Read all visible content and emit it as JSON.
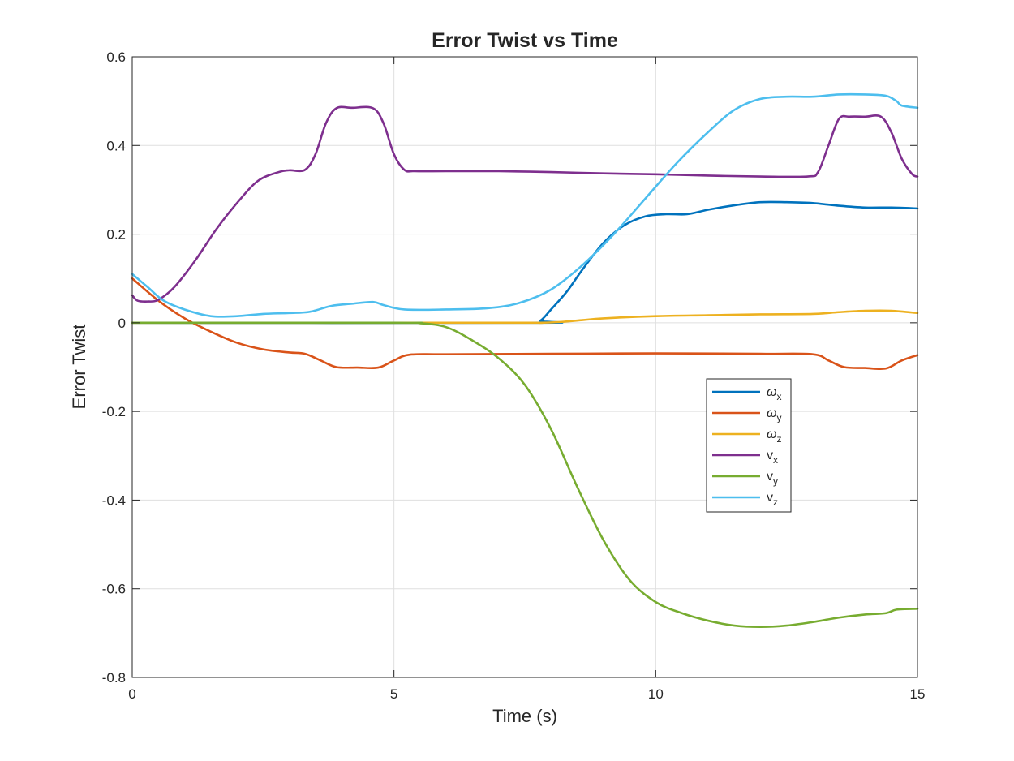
{
  "chart_data": {
    "type": "line",
    "title": "Error Twist vs Time",
    "xlabel": "Time (s)",
    "ylabel": "Error Twist",
    "xlim": [
      0,
      15
    ],
    "ylim": [
      -0.8,
      0.6
    ],
    "xticks": [
      0,
      5,
      10,
      15
    ],
    "xtick_labels": [
      "0",
      "5",
      "10",
      "15"
    ],
    "yticks": [
      -0.8,
      -0.6,
      -0.4,
      -0.2,
      0,
      0.2,
      0.4,
      0.6
    ],
    "ytick_labels": [
      "-0.8",
      "-0.6",
      "-0.4",
      "-0.2",
      "0",
      "0.2",
      "0.4",
      "0.6"
    ],
    "grid": true,
    "legend_position": "center-right",
    "series": [
      {
        "name": "ω",
        "subscript": "x",
        "color": "#0072BD",
        "x": [
          0,
          7.6,
          7.8,
          8.0,
          8.3,
          8.6,
          9.0,
          9.4,
          9.8,
          10.2,
          10.6,
          11.0,
          11.5,
          12.0,
          12.5,
          13.0,
          13.5,
          14.0,
          14.5,
          15.0
        ],
        "y": [
          0,
          0,
          0.005,
          0.03,
          0.07,
          0.12,
          0.18,
          0.22,
          0.24,
          0.245,
          0.245,
          0.255,
          0.265,
          0.272,
          0.272,
          0.27,
          0.264,
          0.26,
          0.26,
          0.258
        ]
      },
      {
        "name": "ω",
        "subscript": "y",
        "color": "#D95319",
        "x": [
          0,
          0.5,
          1.0,
          1.5,
          2.0,
          2.5,
          3.0,
          3.3,
          3.6,
          3.9,
          4.3,
          4.7,
          5.0,
          5.3,
          6.0,
          8.0,
          10.0,
          12.0,
          13.0,
          13.3,
          13.6,
          14.0,
          14.4,
          14.7,
          15.0
        ],
        "y": [
          0.1,
          0.05,
          0.01,
          -0.02,
          -0.045,
          -0.06,
          -0.067,
          -0.07,
          -0.085,
          -0.1,
          -0.101,
          -0.101,
          -0.085,
          -0.072,
          -0.071,
          -0.07,
          -0.069,
          -0.07,
          -0.071,
          -0.085,
          -0.1,
          -0.102,
          -0.103,
          -0.085,
          -0.073
        ]
      },
      {
        "name": "ω",
        "subscript": "z",
        "color": "#EDB120",
        "x": [
          0,
          5.0,
          7.6,
          7.8,
          8.2,
          8.6,
          9.0,
          10.0,
          11.0,
          12.0,
          13.0,
          13.5,
          14.0,
          14.5,
          15.0
        ],
        "y": [
          0,
          0,
          0,
          0,
          0.002,
          0.006,
          0.01,
          0.015,
          0.017,
          0.019,
          0.02,
          0.024,
          0.027,
          0.027,
          0.022
        ]
      },
      {
        "name": "v",
        "subscript": "x",
        "color": "#7E2F8E",
        "x": [
          0,
          0.1,
          0.3,
          0.5,
          0.8,
          1.2,
          1.6,
          2.0,
          2.4,
          2.8,
          3.0,
          3.3,
          3.5,
          3.7,
          3.9,
          4.2,
          4.6,
          4.8,
          5.0,
          5.2,
          5.4,
          6.0,
          7.0,
          8.0,
          9.0,
          10.0,
          11.0,
          12.0,
          12.9,
          13.1,
          13.3,
          13.5,
          13.7,
          14.0,
          14.3,
          14.5,
          14.7,
          14.9,
          15.0
        ],
        "y": [
          0.062,
          0.05,
          0.048,
          0.052,
          0.08,
          0.14,
          0.21,
          0.27,
          0.32,
          0.34,
          0.344,
          0.345,
          0.38,
          0.45,
          0.484,
          0.485,
          0.484,
          0.45,
          0.38,
          0.345,
          0.342,
          0.342,
          0.342,
          0.34,
          0.337,
          0.335,
          0.332,
          0.33,
          0.33,
          0.34,
          0.4,
          0.46,
          0.465,
          0.465,
          0.465,
          0.43,
          0.37,
          0.335,
          0.33
        ]
      },
      {
        "name": "v",
        "subscript": "y",
        "color": "#77AC30",
        "x": [
          0,
          5.0,
          5.5,
          6.0,
          6.5,
          7.0,
          7.5,
          8.0,
          8.5,
          9.0,
          9.5,
          10.0,
          10.5,
          11.0,
          11.5,
          12.0,
          12.5,
          13.0,
          13.5,
          14.0,
          14.4,
          14.6,
          15.0
        ],
        "y": [
          0,
          0,
          -0.001,
          -0.01,
          -0.04,
          -0.08,
          -0.14,
          -0.24,
          -0.37,
          -0.49,
          -0.58,
          -0.63,
          -0.655,
          -0.672,
          -0.683,
          -0.686,
          -0.683,
          -0.675,
          -0.665,
          -0.658,
          -0.655,
          -0.647,
          -0.645
        ]
      },
      {
        "name": "v",
        "subscript": "z",
        "color": "#4DBEEE",
        "x": [
          0,
          0.3,
          0.6,
          1.0,
          1.5,
          2.0,
          2.5,
          3.0,
          3.4,
          3.8,
          4.2,
          4.6,
          4.8,
          5.2,
          6.0,
          6.8,
          7.4,
          8.0,
          8.6,
          9.2,
          9.8,
          10.4,
          11.0,
          11.5,
          12.0,
          12.5,
          13.0,
          13.5,
          14.0,
          14.4,
          14.6,
          14.7,
          15.0
        ],
        "y": [
          0.11,
          0.08,
          0.05,
          0.03,
          0.015,
          0.015,
          0.02,
          0.022,
          0.025,
          0.038,
          0.043,
          0.047,
          0.04,
          0.03,
          0.03,
          0.033,
          0.045,
          0.075,
          0.13,
          0.2,
          0.28,
          0.36,
          0.43,
          0.48,
          0.505,
          0.51,
          0.51,
          0.515,
          0.515,
          0.512,
          0.5,
          0.49,
          0.485
        ]
      }
    ]
  }
}
